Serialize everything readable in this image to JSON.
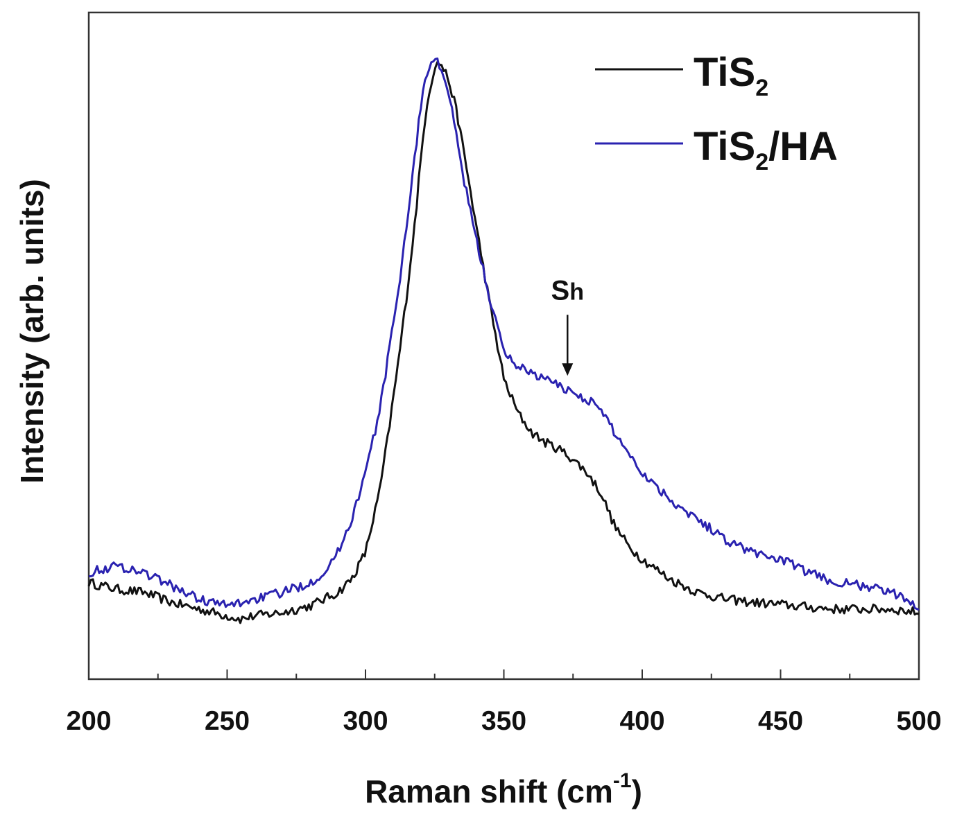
{
  "chart_data": {
    "type": "line",
    "title": "",
    "xlabel": "Raman shift (cm",
    "xlabel_sup": "-1",
    "xlabel_close": ")",
    "ylabel": "Intensity (arb. units)",
    "xlim": [
      200,
      500
    ],
    "ylim": [
      0,
      1
    ],
    "x_ticks": [
      200,
      250,
      300,
      350,
      400,
      450,
      500
    ],
    "x_tick_labels": [
      "200",
      "250",
      "300",
      "350",
      "400",
      "450",
      "500"
    ],
    "y_ticks_shown": false,
    "grid": false,
    "legend_position": "top-right",
    "series": [
      {
        "name": "TiS2",
        "legend_main": "TiS",
        "legend_sub": "2",
        "legend_tail": "",
        "color": "#111111",
        "x": [
          200,
          210,
          220,
          230,
          240,
          250,
          255,
          260,
          270,
          280,
          290,
          295,
          300,
          305,
          308,
          312,
          315,
          318,
          320,
          322,
          325,
          327,
          330,
          333,
          336,
          340,
          345,
          350,
          355,
          360,
          365,
          370,
          375,
          380,
          385,
          390,
          395,
          400,
          410,
          420,
          430,
          440,
          450,
          460,
          470,
          480,
          490,
          500
        ],
        "y": [
          0.145,
          0.135,
          0.13,
          0.115,
          0.105,
          0.095,
          0.09,
          0.095,
          0.1,
          0.11,
          0.13,
          0.15,
          0.19,
          0.28,
          0.36,
          0.48,
          0.58,
          0.69,
          0.78,
          0.86,
          0.92,
          0.925,
          0.9,
          0.85,
          0.78,
          0.68,
          0.56,
          0.45,
          0.4,
          0.37,
          0.355,
          0.345,
          0.33,
          0.31,
          0.28,
          0.23,
          0.2,
          0.18,
          0.15,
          0.13,
          0.12,
          0.115,
          0.112,
          0.108,
          0.105,
          0.105,
          0.105,
          0.1
        ]
      },
      {
        "name": "TiS2/HA",
        "legend_main": "TiS",
        "legend_sub": "2",
        "legend_tail": "/HA",
        "color": "#2a22b0",
        "x": [
          200,
          205,
          210,
          215,
          220,
          230,
          240,
          250,
          260,
          270,
          280,
          285,
          290,
          295,
          300,
          305,
          310,
          313,
          316,
          318,
          320,
          322,
          325,
          327,
          330,
          333,
          336,
          340,
          345,
          350,
          355,
          360,
          365,
          370,
          375,
          380,
          385,
          390,
          395,
          400,
          405,
          410,
          420,
          430,
          440,
          450,
          460,
          470,
          480,
          490,
          500
        ],
        "y": [
          0.16,
          0.165,
          0.17,
          0.165,
          0.16,
          0.14,
          0.12,
          0.11,
          0.12,
          0.13,
          0.145,
          0.16,
          0.19,
          0.24,
          0.31,
          0.4,
          0.53,
          0.62,
          0.72,
          0.79,
          0.86,
          0.91,
          0.93,
          0.92,
          0.88,
          0.81,
          0.74,
          0.66,
          0.57,
          0.49,
          0.47,
          0.46,
          0.45,
          0.44,
          0.43,
          0.42,
          0.405,
          0.37,
          0.34,
          0.31,
          0.29,
          0.27,
          0.24,
          0.21,
          0.19,
          0.18,
          0.16,
          0.145,
          0.14,
          0.13,
          0.11
        ]
      }
    ],
    "annotations": [
      {
        "text": "S",
        "sub": "h",
        "x": 373,
        "arrow_tip_y": 0.455
      }
    ]
  }
}
